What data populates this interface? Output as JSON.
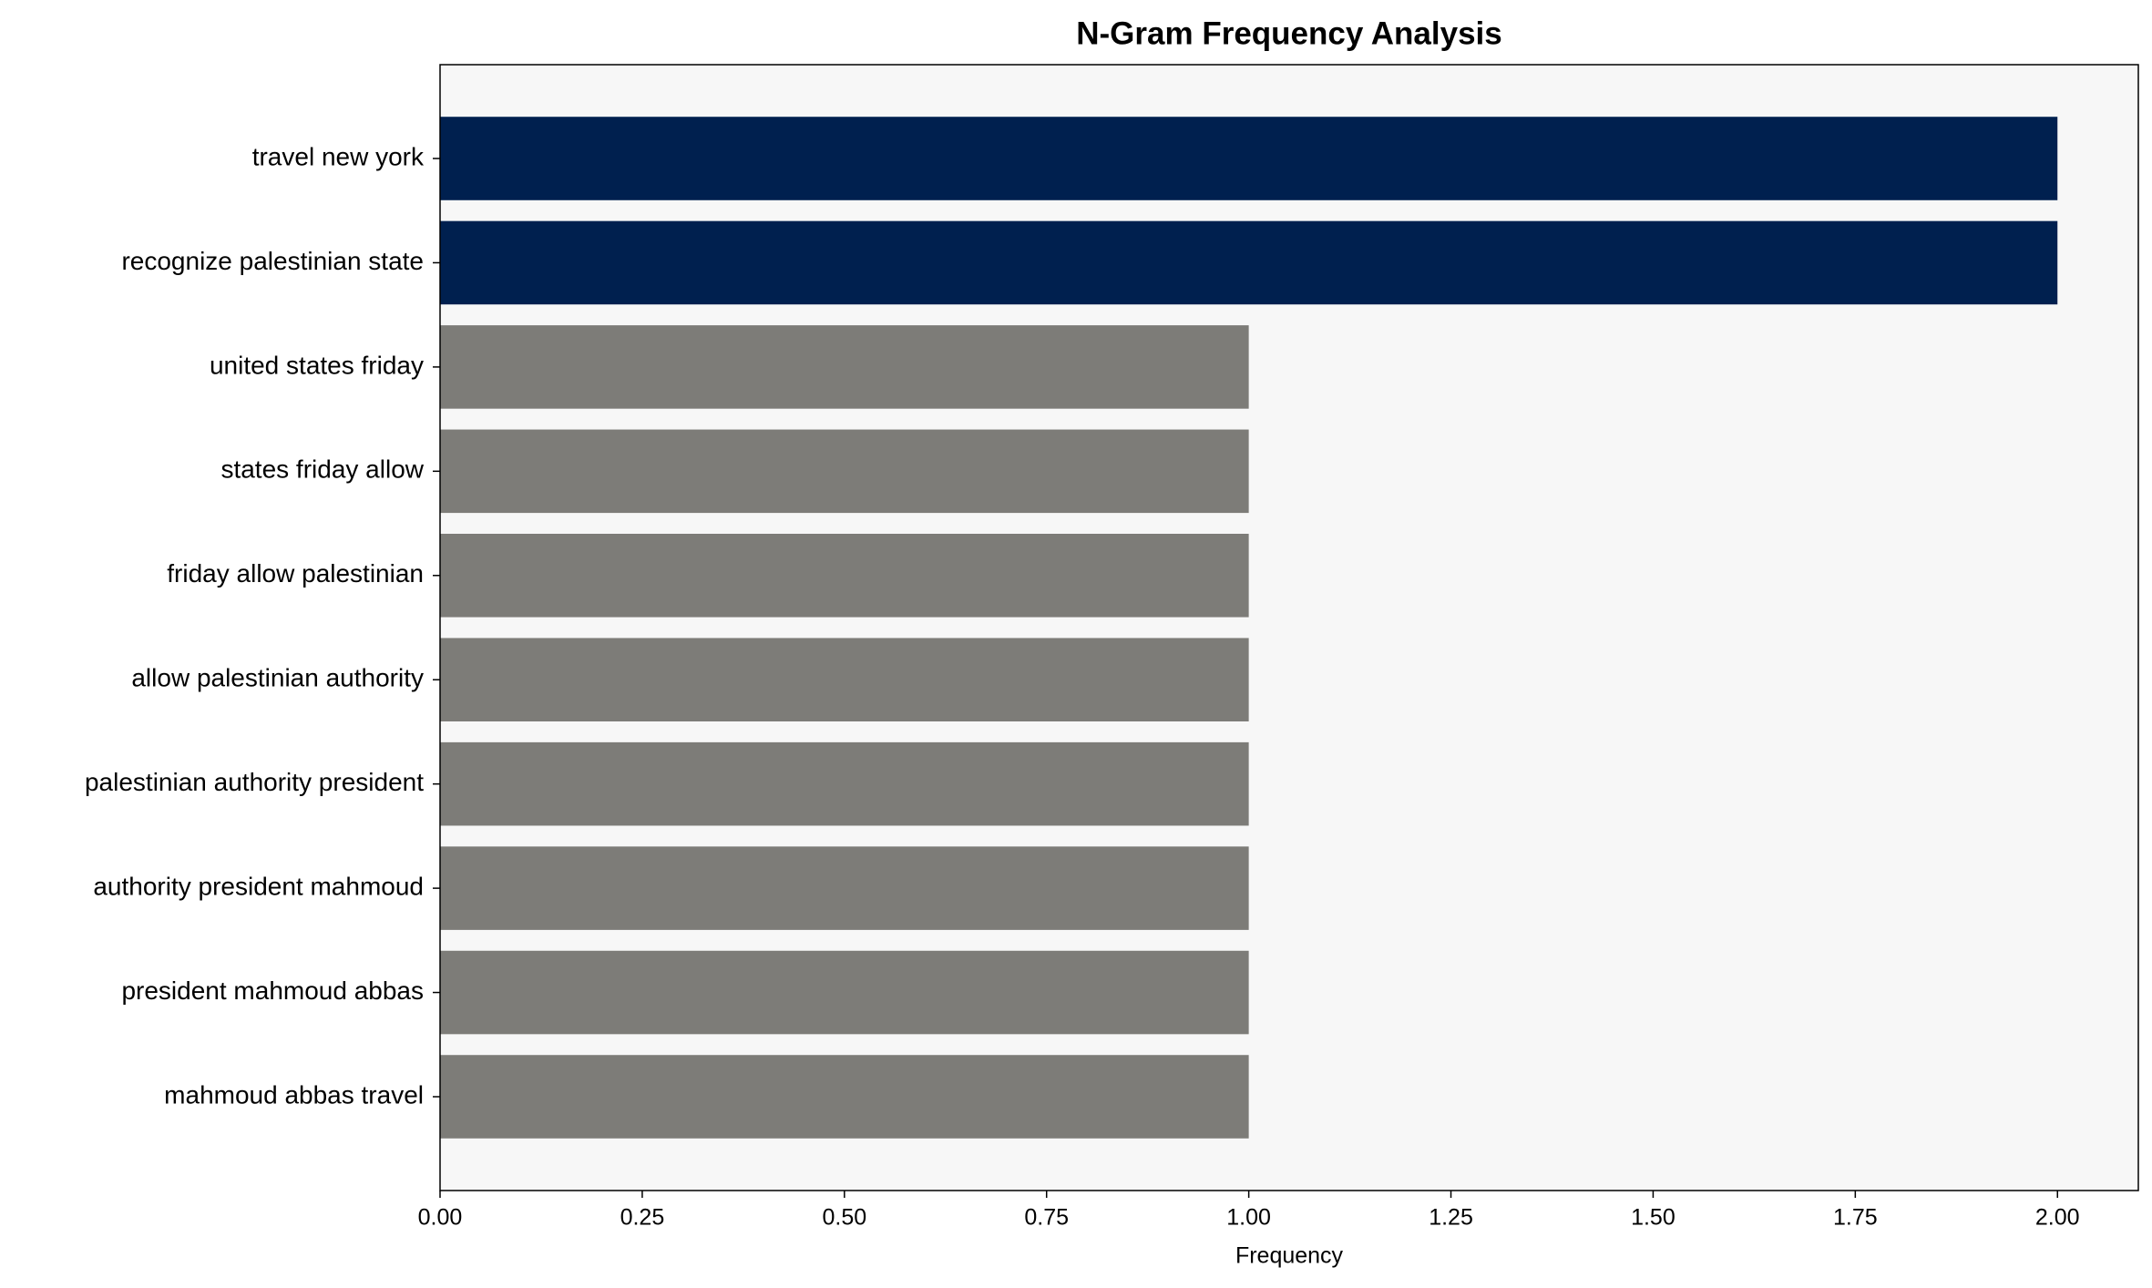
{
  "chart_data": {
    "type": "barh",
    "title": "N-Gram Frequency Analysis",
    "xlabel": "Frequency",
    "categories": [
      "travel new york",
      "recognize palestinian state",
      "united states friday",
      "states friday allow",
      "friday allow palestinian",
      "allow palestinian authority",
      "palestinian authority president",
      "authority president mahmoud",
      "president mahmoud abbas",
      "mahmoud abbas travel"
    ],
    "values": [
      2,
      2,
      1,
      1,
      1,
      1,
      1,
      1,
      1,
      1
    ],
    "colors": [
      "#00204f",
      "#00204f",
      "#7d7c78",
      "#7d7c78",
      "#7d7c78",
      "#7d7c78",
      "#7d7c78",
      "#7d7c78",
      "#7d7c78",
      "#7d7c78"
    ],
    "xlim": [
      0,
      2.1
    ],
    "xticks": [
      {
        "value": 0,
        "label": "0.00"
      },
      {
        "value": 0.25,
        "label": "0.25"
      },
      {
        "value": 0.5,
        "label": "0.50"
      },
      {
        "value": 0.75,
        "label": "0.75"
      },
      {
        "value": 1,
        "label": "1.00"
      },
      {
        "value": 1.25,
        "label": "1.25"
      },
      {
        "value": 1.5,
        "label": "1.50"
      },
      {
        "value": 1.75,
        "label": "1.75"
      },
      {
        "value": 2,
        "label": "2.00"
      }
    ],
    "grid": false
  }
}
